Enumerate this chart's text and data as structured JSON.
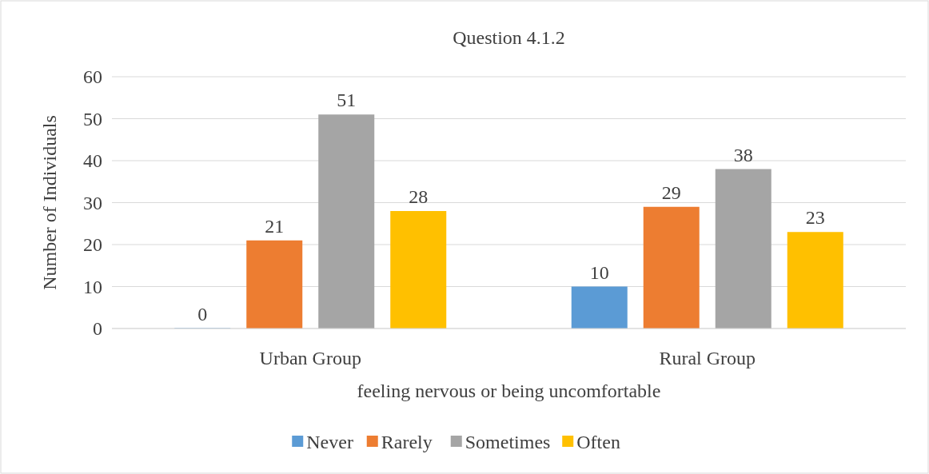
{
  "chart_data": {
    "type": "bar",
    "title": "Question 4.1.2",
    "xlabel": "feeling nervous or being uncomfortable",
    "ylabel": "Number of Individuals",
    "categories": [
      "Urban Group",
      "Rural Group"
    ],
    "series": [
      {
        "name": "Never",
        "color": "#5b9bd5",
        "values": [
          0,
          10
        ]
      },
      {
        "name": "Rarely",
        "color": "#ed7d31",
        "values": [
          21,
          29
        ]
      },
      {
        "name": "Sometimes",
        "color": "#a5a5a5",
        "values": [
          51,
          38
        ]
      },
      {
        "name": "Often",
        "color": "#ffc000",
        "values": [
          28,
          23
        ]
      }
    ],
    "ylim": [
      0,
      60
    ],
    "yticks": [
      0,
      10,
      20,
      30,
      40,
      50,
      60
    ],
    "grid": "y",
    "legend": "bottom",
    "data_labels": true
  }
}
